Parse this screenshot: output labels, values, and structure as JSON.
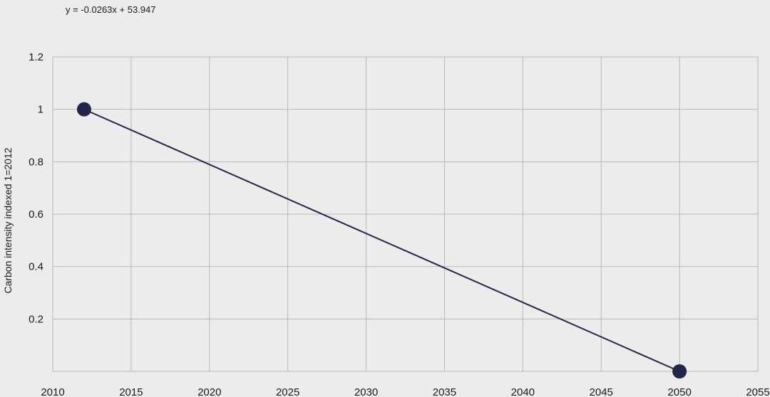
{
  "chart_data": {
    "type": "scatter",
    "title": "",
    "xlabel": "",
    "ylabel": "Carbon intensity indexed 1=2012",
    "equation": "y = -0.0263x + 53.947",
    "xlim": [
      2010,
      2055
    ],
    "ylim": [
      0,
      1.2
    ],
    "x_ticks": [
      2010,
      2015,
      2020,
      2025,
      2030,
      2035,
      2040,
      2045,
      2050,
      2055
    ],
    "x_tick_labels": [
      "2010",
      "2015",
      "2020",
      "2025",
      "2030",
      "2035",
      "2040",
      "2045",
      "2050",
      "2055"
    ],
    "y_ticks": [
      0.2,
      0.4,
      0.6,
      0.8,
      1,
      1.2
    ],
    "y_tick_labels": [
      "0.2",
      "0.4",
      "0.6",
      "0.8",
      "1",
      "1.2"
    ],
    "grid": true,
    "legend": "none",
    "series": [
      {
        "x": [
          2012,
          2050
        ],
        "y": [
          1,
          0
        ],
        "color": "#22264a"
      }
    ],
    "trendline": {
      "slope": -0.0263,
      "intercept": 53.947,
      "color": "#22264a"
    }
  }
}
